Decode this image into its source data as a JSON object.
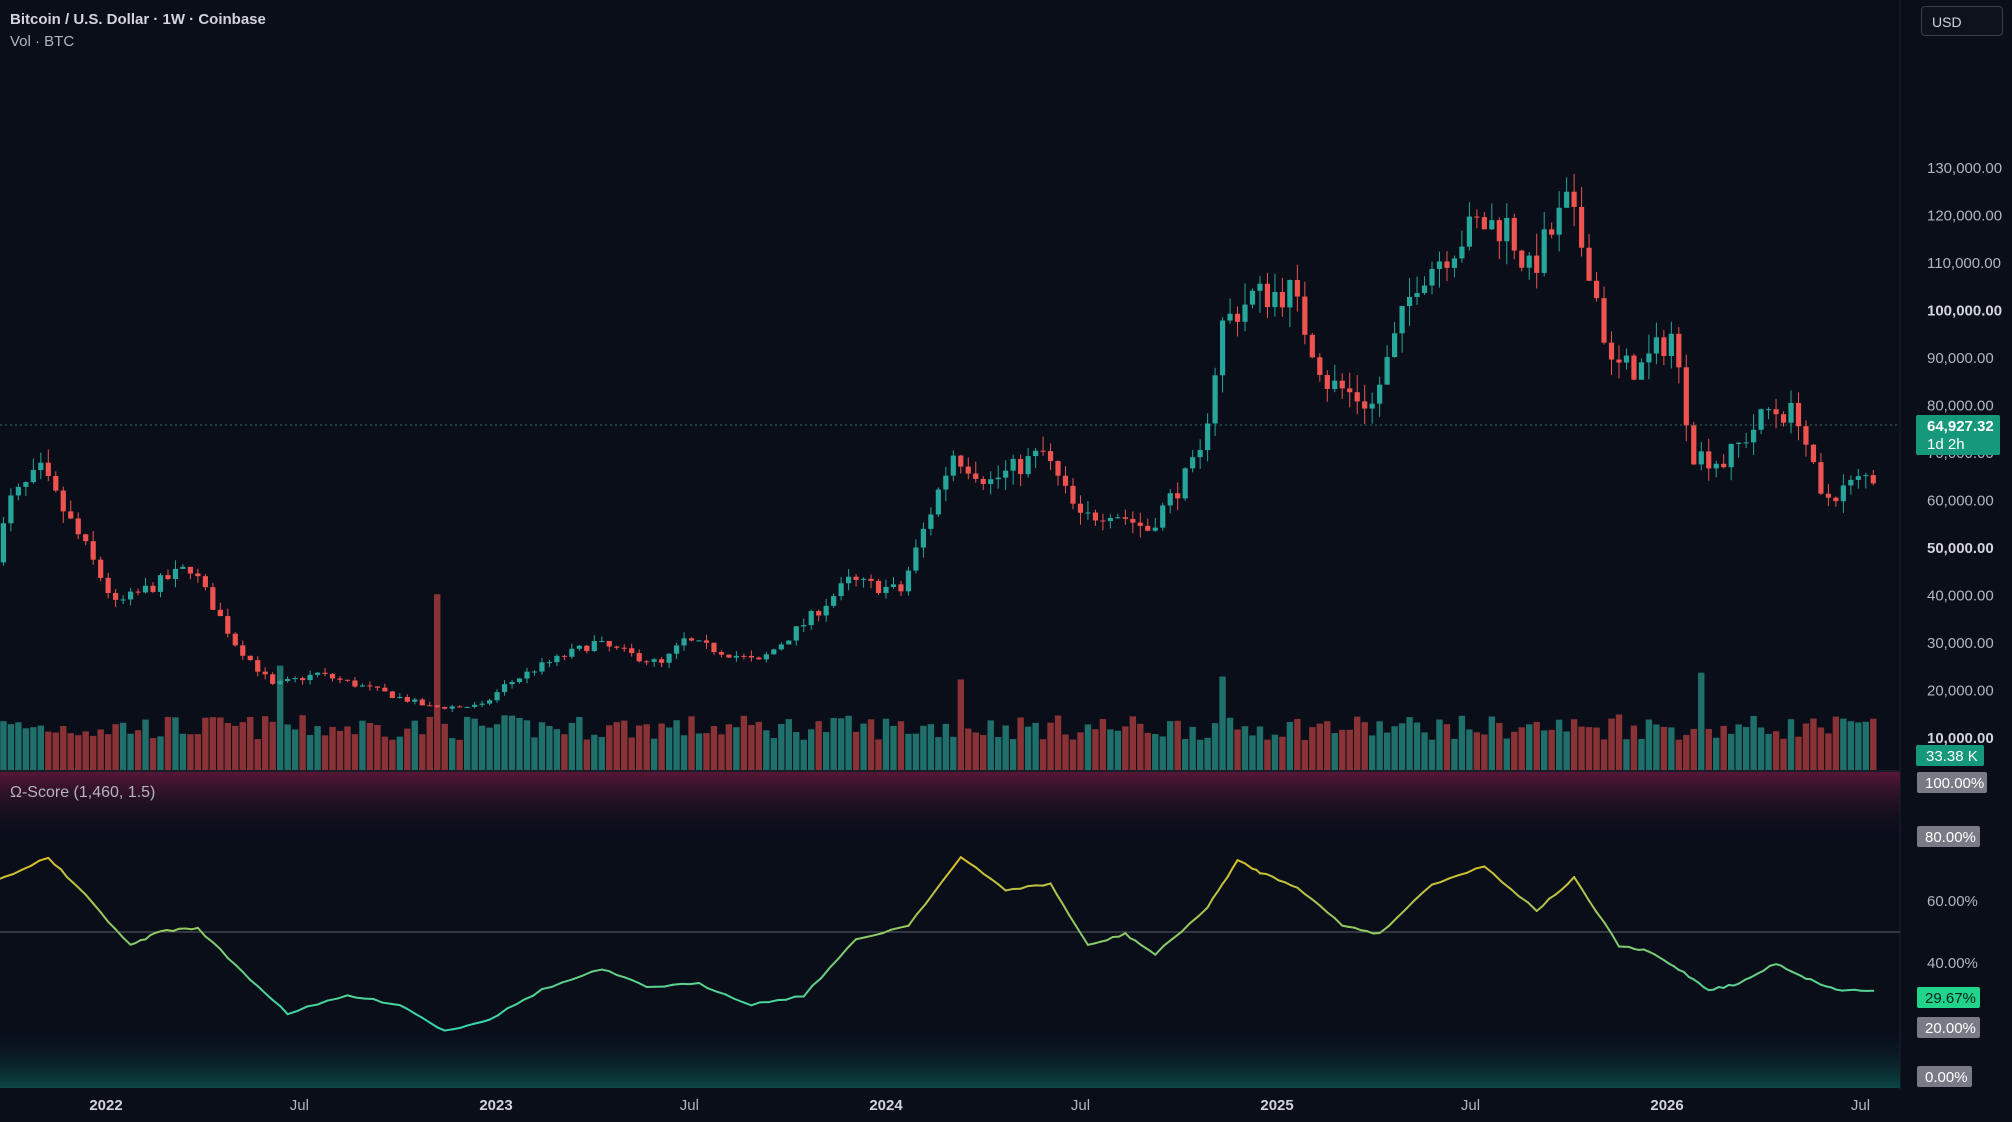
{
  "header": {
    "title": "Bitcoin / U.S. Dollar · 1W · Coinbase",
    "volume_label": "Vol · BTC",
    "currency": "USD"
  },
  "indicator": {
    "label": "Ω-Score (1,460, 1.5)"
  },
  "badges": {
    "price": "64,927.32",
    "countdown": "1d 2h",
    "volume": "33.38 K",
    "osc_top": "100.00%",
    "osc_high": "80.00%",
    "osc_value": "29.67%",
    "osc_low": "20.00%",
    "osc_bottom": "0.00%"
  },
  "colors": {
    "background": "#090e19",
    "up": "#26a69a",
    "down": "#ef5350",
    "volume_up": "#1f6f6b",
    "volume_down": "#8a3336",
    "price_badge": "#16997a",
    "osc_badge": "#20d48c",
    "osc_grey_badge": "#787b86"
  },
  "chart_data": [
    {
      "type": "candlestick",
      "title": "Bitcoin / U.S. Dollar · 1W · Coinbase",
      "ylim": [
        0,
        135000
      ],
      "y_ticks": [
        10000,
        20000,
        30000,
        40000,
        50000,
        60000,
        70000,
        80000,
        90000,
        100000,
        110000,
        120000,
        130000
      ],
      "y_tick_labels": [
        "10,000.00",
        "20,000.00",
        "30,000.00",
        "40,000.00",
        "50,000.00",
        "60,000.00",
        "70,000.00",
        "80,000.00",
        "90,000.00",
        "100,000.00",
        "110,000.00",
        "120,000.00",
        "130,000.00"
      ],
      "bold_ticks": [
        "10,000.00",
        "50,000.00",
        "100,000.00"
      ],
      "x_axis_labels": [
        "2022",
        "Jul",
        "2023",
        "Jul",
        "2024",
        "Jul",
        "2025",
        "Jul",
        "2026",
        "Jul"
      ],
      "bold_x_labels": [
        "2022",
        "2023",
        "2024",
        "2025",
        "2026"
      ],
      "x_label_dates": [
        "2022-01-01",
        "2022-07-01",
        "2023-01-01",
        "2023-07-01",
        "2024-01-01",
        "2024-07-01",
        "2025-01-01",
        "2025-07-01",
        "2026-01-01",
        "2026-07-01"
      ],
      "key_points": [
        [
          "2021-09-20",
          43000
        ],
        [
          "2021-10-11",
          60000
        ],
        [
          "2021-11-08",
          66000
        ],
        [
          "2021-12-20",
          50000
        ],
        [
          "2022-01-17",
          38000
        ],
        [
          "2022-03-28",
          46000
        ],
        [
          "2022-05-09",
          30000
        ],
        [
          "2022-06-13",
          21000
        ],
        [
          "2022-07-25",
          23500
        ],
        [
          "2022-09-26",
          19500
        ],
        [
          "2022-11-07",
          16500
        ],
        [
          "2022-12-26",
          16700
        ],
        [
          "2023-01-16",
          21000
        ],
        [
          "2023-02-13",
          24500
        ],
        [
          "2023-03-20",
          28000
        ],
        [
          "2023-04-10",
          30000
        ],
        [
          "2023-06-12",
          25500
        ],
        [
          "2023-07-03",
          30500
        ],
        [
          "2023-09-11",
          26000
        ],
        [
          "2023-10-23",
          34000
        ],
        [
          "2023-12-04",
          43000
        ],
        [
          "2024-01-22",
          41000
        ],
        [
          "2024-02-26",
          62000
        ],
        [
          "2024-03-11",
          70000
        ],
        [
          "2024-04-15",
          64000
        ],
        [
          "2024-06-03",
          70000
        ],
        [
          "2024-07-08",
          56000
        ],
        [
          "2024-08-05",
          58000
        ],
        [
          "2024-09-09",
          54000
        ],
        [
          "2024-10-28",
          69000
        ],
        [
          "2024-11-18",
          97000
        ],
        [
          "2024-12-16",
          103000
        ],
        [
          "2025-01-20",
          104000
        ],
        [
          "2025-02-24",
          85000
        ],
        [
          "2025-04-07",
          80000
        ],
        [
          "2025-05-19",
          107000
        ],
        [
          "2025-07-14",
          118000
        ],
        [
          "2025-08-11",
          118000
        ],
        [
          "2025-09-01",
          108000
        ],
        [
          "2025-10-06",
          122000
        ],
        [
          "2025-10-27",
          110000
        ],
        [
          "2025-11-17",
          88000
        ],
        [
          "2025-12-15",
          88000
        ],
        [
          "2026-01-12",
          95000
        ],
        [
          "2026-02-02",
          70000
        ],
        [
          "2026-03-02",
          68000
        ],
        [
          "2026-04-13",
          79000
        ],
        [
          "2026-05-11",
          78000
        ],
        [
          "2026-06-01",
          60000
        ],
        [
          "2026-07-13",
          64927.32
        ]
      ],
      "last_price": 64927.32
    },
    {
      "type": "bar",
      "title": "Vol · BTC",
      "last_value": "33.38 K",
      "spikes": [
        [
          "2022-06-13",
          2.6
        ],
        [
          "2022-11-07",
          3.9
        ],
        [
          "2024-03-11",
          2.3
        ],
        [
          "2024-11-11",
          1.7
        ],
        [
          "2026-02-02",
          1.9
        ],
        [
          "2025-11-17",
          1.4
        ]
      ]
    },
    {
      "type": "line",
      "title": "Ω-Score (1,460, 1.5)",
      "ylim": [
        0,
        100
      ],
      "y_tick_labels": [
        "60.00%",
        "40.00%"
      ],
      "reference_line": 50,
      "points": [
        [
          "2021-09-20",
          67
        ],
        [
          "2021-11-08",
          75
        ],
        [
          "2021-12-13",
          62
        ],
        [
          "2022-01-24",
          45
        ],
        [
          "2022-02-21",
          50
        ],
        [
          "2022-03-28",
          51
        ],
        [
          "2022-05-09",
          36
        ],
        [
          "2022-06-20",
          22
        ],
        [
          "2022-08-15",
          28
        ],
        [
          "2022-10-03",
          25
        ],
        [
          "2022-11-14",
          16
        ],
        [
          "2022-12-26",
          20
        ],
        [
          "2023-02-13",
          30
        ],
        [
          "2023-04-10",
          37
        ],
        [
          "2023-05-22",
          31
        ],
        [
          "2023-07-10",
          32
        ],
        [
          "2023-08-28",
          25
        ],
        [
          "2023-10-16",
          28
        ],
        [
          "2023-12-04",
          47
        ],
        [
          "2024-01-22",
          52
        ],
        [
          "2024-03-11",
          75
        ],
        [
          "2024-04-22",
          64
        ],
        [
          "2024-06-03",
          66
        ],
        [
          "2024-07-08",
          45
        ],
        [
          "2024-08-12",
          49
        ],
        [
          "2024-09-09",
          42
        ],
        [
          "2024-10-28",
          58
        ],
        [
          "2024-11-25",
          74
        ],
        [
          "2024-12-16",
          70
        ],
        [
          "2025-01-20",
          65
        ],
        [
          "2025-03-03",
          52
        ],
        [
          "2025-04-07",
          49
        ],
        [
          "2025-05-26",
          66
        ],
        [
          "2025-07-14",
          72
        ],
        [
          "2025-09-01",
          57
        ],
        [
          "2025-10-06",
          68
        ],
        [
          "2025-11-17",
          45
        ],
        [
          "2025-12-15",
          43
        ],
        [
          "2026-01-12",
          37
        ],
        [
          "2026-02-09",
          30
        ],
        [
          "2026-03-09",
          32
        ],
        [
          "2026-04-13",
          39
        ],
        [
          "2026-05-11",
          34
        ],
        [
          "2026-06-08",
          30
        ],
        [
          "2026-07-13",
          29.67
        ]
      ],
      "last_value": 29.67,
      "zones": [
        80,
        20
      ]
    }
  ]
}
